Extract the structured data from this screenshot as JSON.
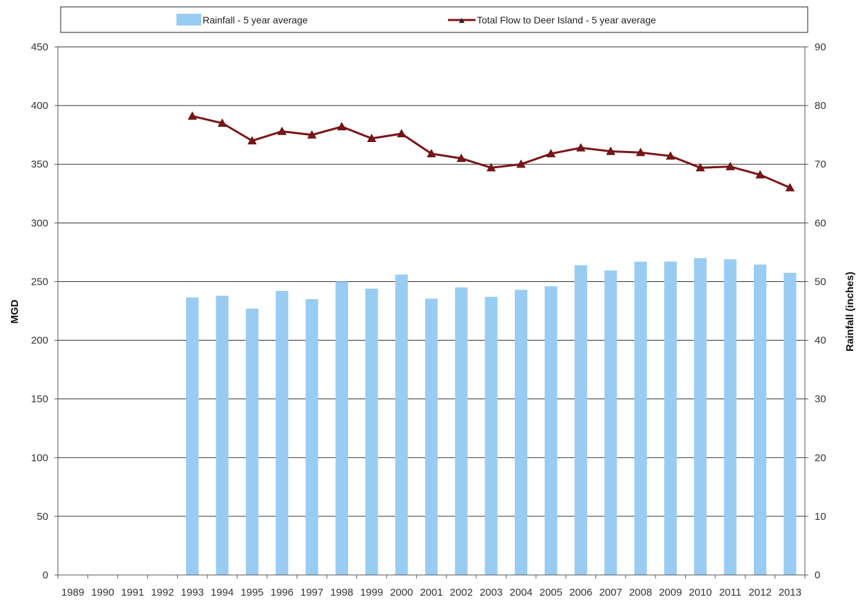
{
  "chart_data": {
    "type": "bar+line",
    "categories": [
      "1989",
      "1990",
      "1991",
      "1992",
      "1993",
      "1994",
      "1995",
      "1996",
      "1997",
      "1998",
      "1999",
      "2000",
      "2001",
      "2002",
      "2003",
      "2004",
      "2005",
      "2006",
      "2007",
      "2008",
      "2009",
      "2010",
      "2011",
      "2012",
      "2013"
    ],
    "series": [
      {
        "name": "Rainfall - 5 year average",
        "type": "bar",
        "axis": "right",
        "color": "#99ccf2",
        "values": [
          null,
          null,
          null,
          null,
          47.3,
          47.6,
          45.4,
          48.4,
          47.0,
          50.0,
          48.8,
          51.2,
          47.1,
          49.0,
          47.4,
          48.6,
          49.2,
          52.8,
          51.9,
          53.4,
          53.4,
          54.0,
          53.8,
          52.9,
          51.5
        ]
      },
      {
        "name": "Total Flow to Deer Island - 5 year average",
        "type": "line",
        "axis": "left",
        "color": "#7b1416",
        "values": [
          null,
          null,
          null,
          null,
          391,
          385,
          370,
          378,
          375,
          382,
          372,
          376,
          359,
          355,
          347,
          350,
          359,
          364,
          361,
          360,
          357,
          347,
          348,
          341,
          330
        ]
      }
    ],
    "ylabel": "MGD",
    "ylim": [
      0,
      450
    ],
    "yticks": [
      0,
      50,
      100,
      150,
      200,
      250,
      300,
      350,
      400,
      450
    ],
    "y2label": "Rainfall (inches)",
    "y2lim": [
      0,
      90
    ],
    "y2ticks": [
      0,
      10,
      20,
      30,
      40,
      50,
      60,
      70,
      80,
      90
    ],
    "grid": true,
    "legend_position": "top"
  }
}
